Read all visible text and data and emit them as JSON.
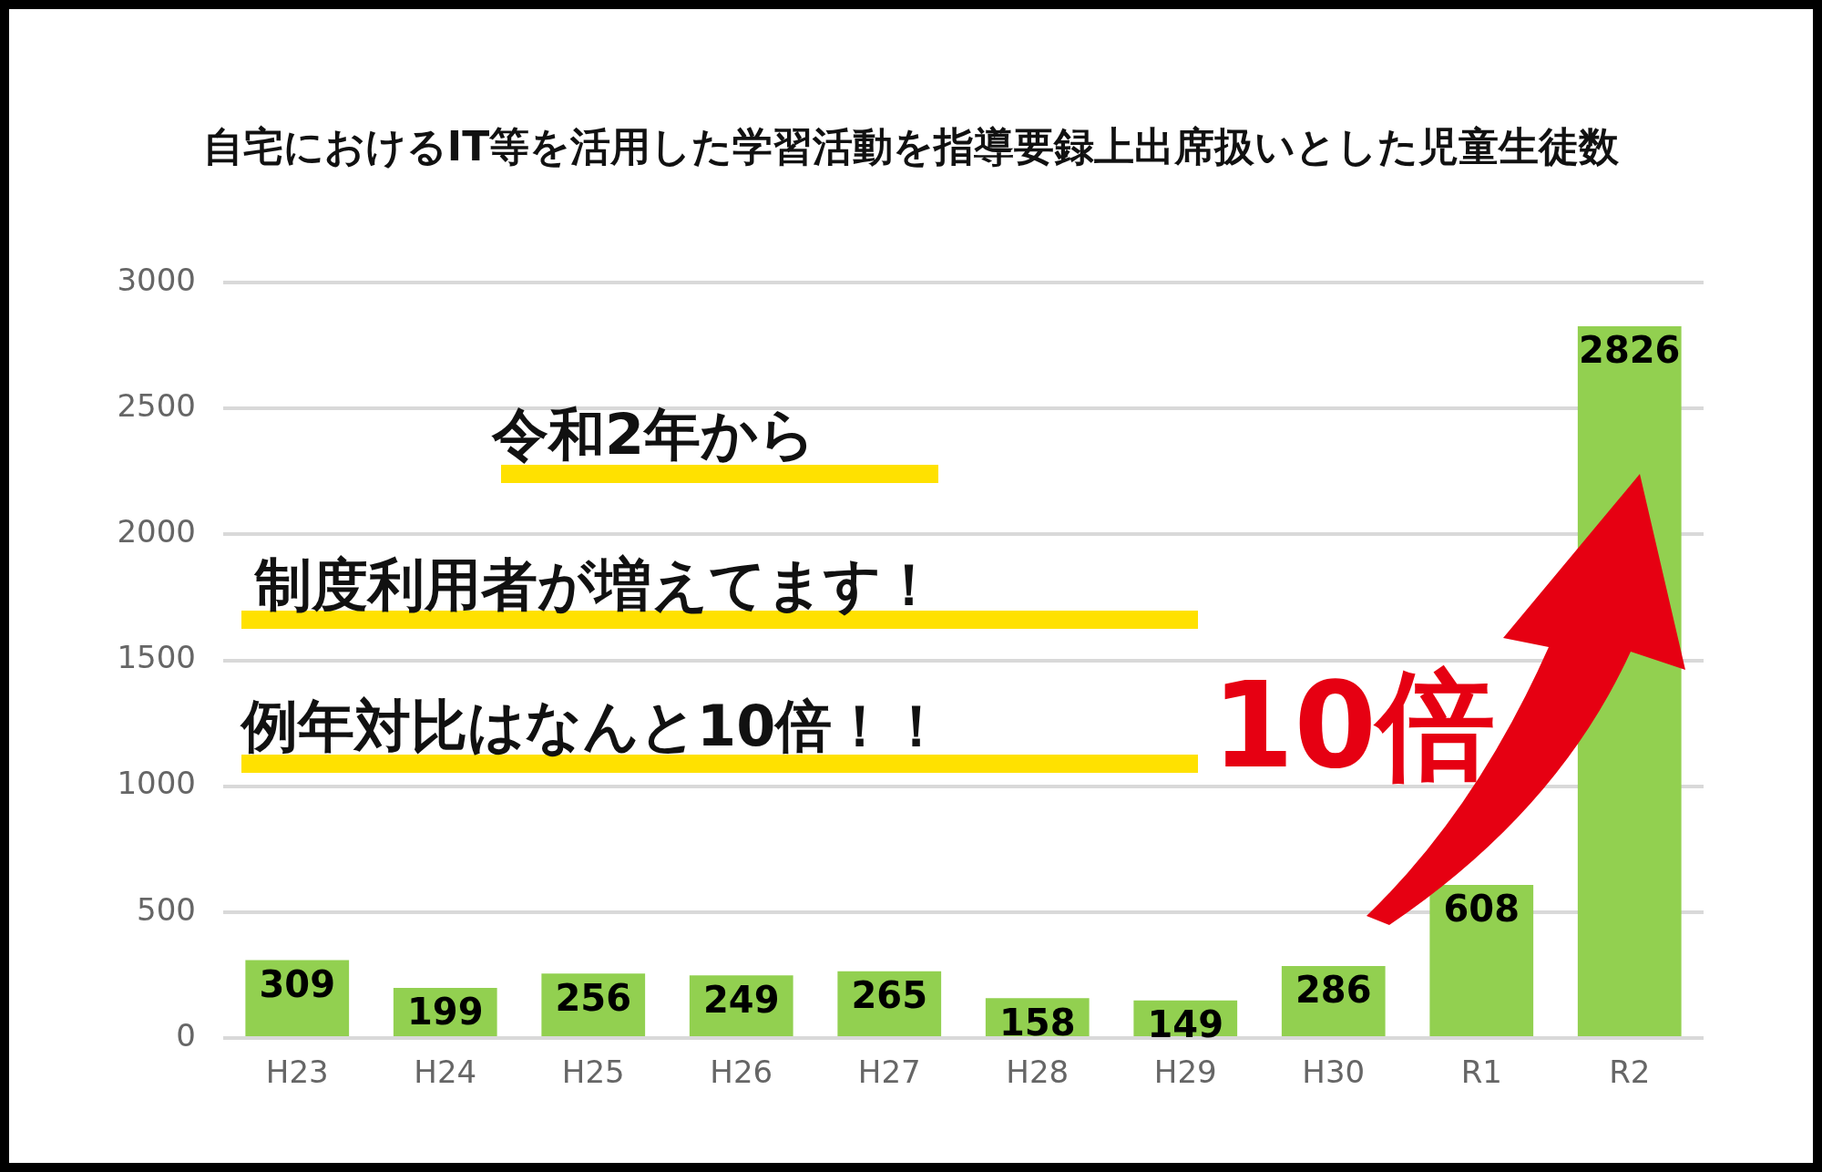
{
  "chart_data": {
    "type": "bar",
    "title": "自宅におけるIT等を活用した学習活動を指導要録上出席扱いとした児童生徒数",
    "categories": [
      "H23",
      "H24",
      "H25",
      "H26",
      "H27",
      "H28",
      "H29",
      "H30",
      "R1",
      "R2"
    ],
    "values": [
      309,
      199,
      256,
      249,
      265,
      158,
      149,
      286,
      608,
      2826
    ],
    "color": "#92d050",
    "ylim": [
      0,
      3000
    ],
    "yticks": [
      0,
      500,
      1000,
      1500,
      2000,
      2500,
      3000
    ],
    "grid": "y",
    "legend": false,
    "data_labels": true,
    "annotations": [
      "令和2年から",
      "制度利用者が増えてます！",
      "例年対比はなんと10倍！！",
      "10倍"
    ]
  }
}
